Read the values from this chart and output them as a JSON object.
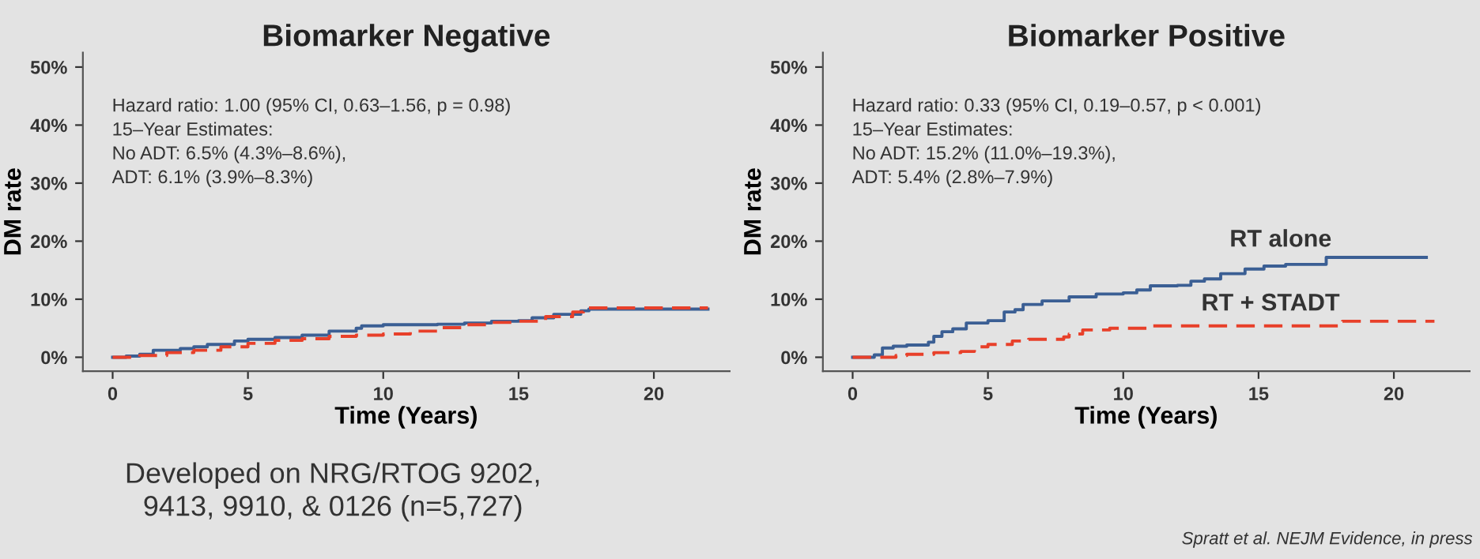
{
  "chart_data": [
    {
      "type": "step",
      "title": "Biomarker Negative",
      "xlabel": "Time (Years)",
      "ylabel": "DM rate",
      "xlim": [
        -1.1,
        22.8
      ],
      "xticks": [
        0,
        5,
        10,
        15,
        20
      ],
      "ylim": [
        -2.4,
        52.5
      ],
      "yticks": [
        {
          "value": 0,
          "label": "0%"
        },
        {
          "value": 10,
          "label": "10%"
        },
        {
          "value": 20,
          "label": "20%"
        },
        {
          "value": 30,
          "label": "30%"
        },
        {
          "value": 40,
          "label": "40%"
        },
        {
          "value": 50,
          "label": "50%"
        }
      ],
      "grid": false,
      "annotations": [
        "Hazard ratio: 1.00 (95% CI, 0.63–1.56, p = 0.98)",
        "15–Year Estimates:",
        "No ADT: 6.5% (4.3%–8.6%),",
        "ADT: 6.1% (3.9%–8.3%)",
        "Developed on NRG/RTOG 9202,\n9413, 9910, & 0126 (n=5,727)"
      ],
      "series": [
        {
          "color": "#3b5f94",
          "line_style": "solid",
          "x": [
            0,
            0.5,
            1,
            1.5,
            2.5,
            3,
            3.5,
            4.5,
            5,
            6,
            7,
            8,
            9,
            9.2,
            10,
            12,
            13,
            14,
            15,
            15.5,
            16.3,
            17.3,
            17.6,
            22
          ],
          "values": [
            0,
            0.2,
            0.5,
            1.2,
            1.5,
            1.8,
            2.2,
            2.8,
            3.1,
            3.4,
            3.8,
            4.5,
            5,
            5.4,
            5.6,
            5.7,
            5.9,
            6.2,
            6.3,
            6.8,
            7.4,
            8,
            8.3,
            8.3
          ]
        },
        {
          "color": "#e8402a",
          "line_style": "dashed",
          "x": [
            0,
            0.7,
            1,
            2,
            3,
            4,
            5,
            6,
            7,
            8,
            9,
            10,
            11,
            12,
            13,
            14,
            15,
            16,
            17,
            17.4,
            22
          ],
          "values": [
            0,
            0,
            0.3,
            0.8,
            1.2,
            1.8,
            2.4,
            2.9,
            3.2,
            3.6,
            3.8,
            4,
            4.5,
            5.1,
            5.6,
            6,
            6.2,
            7,
            7.8,
            8.5,
            8.5
          ]
        }
      ]
    },
    {
      "type": "step",
      "title": "Biomarker Positive",
      "xlabel": "Time (Years)",
      "ylabel": "DM rate",
      "xlim": [
        -1.1,
        22.8
      ],
      "xticks": [
        0,
        5,
        10,
        15,
        20
      ],
      "ylim": [
        -2.4,
        52.5
      ],
      "yticks": [
        {
          "value": 0,
          "label": "0%"
        },
        {
          "value": 10,
          "label": "10%"
        },
        {
          "value": 20,
          "label": "20%"
        },
        {
          "value": 30,
          "label": "30%"
        },
        {
          "value": 40,
          "label": "40%"
        },
        {
          "value": 50,
          "label": "50%"
        }
      ],
      "grid": false,
      "annotations": [
        "Hazard ratio: 0.33 (95% CI, 0.19–0.57, p < 0.001)",
        "15–Year Estimates:",
        "No ADT: 15.2% (11.0%–19.3%),",
        "ADT: 5.4% (2.8%–7.9%)",
        "Spratt et al. NEJM Evidence, in press"
      ],
      "series": [
        {
          "name": "RT alone",
          "color": "#3b5f94",
          "line_style": "solid",
          "x": [
            0,
            0.8,
            1.1,
            1.5,
            2,
            2.8,
            3,
            3.3,
            3.7,
            4.2,
            5,
            5.6,
            6,
            6.3,
            7,
            8,
            9,
            10,
            10.5,
            11,
            12,
            12.5,
            13,
            13.6,
            14.5,
            15.2,
            16,
            17.5,
            21.2
          ],
          "values": [
            0,
            0.4,
            1.6,
            1.9,
            2.1,
            2.6,
            3.6,
            4.4,
            4.9,
            5.9,
            6.3,
            7.8,
            8.2,
            9.1,
            9.7,
            10.4,
            10.9,
            11.1,
            11.6,
            12.3,
            12.4,
            13.1,
            13.5,
            14.4,
            15.2,
            15.7,
            16,
            17.2,
            17.2
          ]
        },
        {
          "name": "RT + STADT",
          "color": "#e8402a",
          "line_style": "dashed",
          "x": [
            0,
            1.6,
            2,
            3,
            4,
            4.5,
            5,
            5.9,
            6.5,
            7.8,
            8,
            8.5,
            9.5,
            11,
            18,
            18.1,
            21.5
          ],
          "values": [
            0,
            0.3,
            0.5,
            0.8,
            1.0,
            1.8,
            2.2,
            2.8,
            3.1,
            3.5,
            4.0,
            4.7,
            5.0,
            5.4,
            5.4,
            6.2,
            6.2
          ]
        }
      ]
    }
  ]
}
